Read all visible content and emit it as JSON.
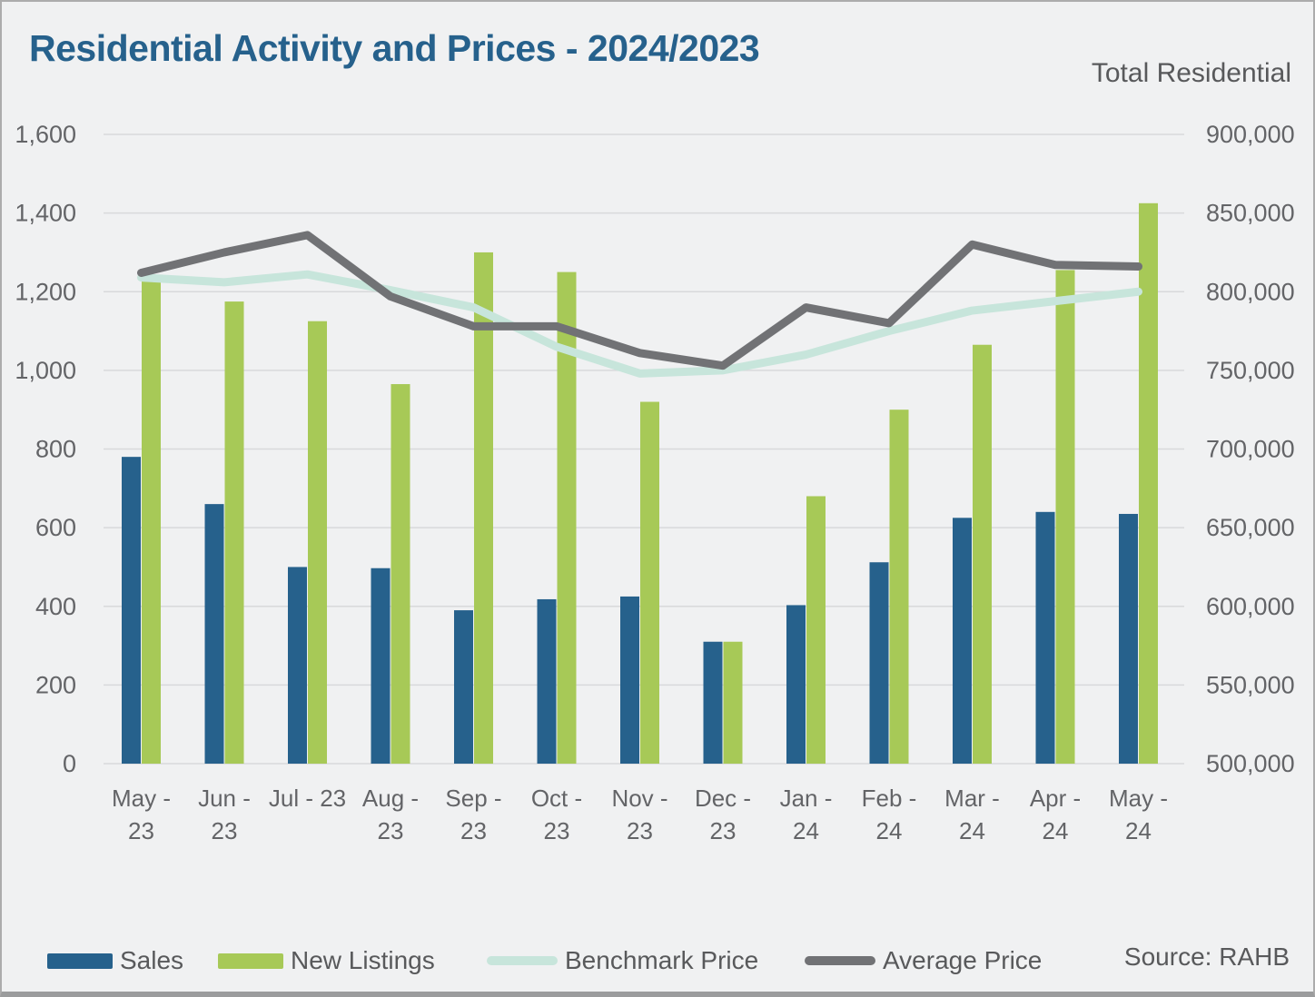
{
  "header": {
    "title": "Residential Activity and Prices - 2024/2023",
    "right_axis_title": "Total Residential"
  },
  "source": "Source: RAHB",
  "colors": {
    "sales_blue": "#26618C",
    "listings_green": "#A7C957",
    "benchmark_teal": "#C7E5DB",
    "average_gray": "#717275",
    "grid": "#D8D9DB",
    "axis_text": "#636467",
    "background": "#F0F1F2",
    "title_blue": "#26618C"
  },
  "legend": [
    {
      "label": "Sales",
      "kind": "bar",
      "color": "#26618C"
    },
    {
      "label": "New Listings",
      "kind": "bar",
      "color": "#A7C957"
    },
    {
      "label": "Benchmark Price",
      "kind": "line",
      "color": "#C7E5DB"
    },
    {
      "label": "Average Price",
      "kind": "line",
      "color": "#717275"
    }
  ],
  "chart_data": {
    "type": "bar",
    "subtype": "combo-bars-with-lines-dual-axis",
    "title": "Residential Activity and Prices - 2024/2023",
    "categories": [
      "May - 23",
      "Jun - 23",
      "Jul - 23",
      "Aug - 23",
      "Sep - 23",
      "Oct - 23",
      "Nov - 23",
      "Dec - 23",
      "Jan - 24",
      "Feb - 24",
      "Mar - 24",
      "Apr - 24",
      "May - 24"
    ],
    "category_label_lines": [
      [
        "May -",
        "23"
      ],
      [
        "Jun -",
        "23"
      ],
      [
        "Jul - 23"
      ],
      [
        "Aug -",
        "23"
      ],
      [
        "Sep -",
        "23"
      ],
      [
        "Oct -",
        "23"
      ],
      [
        "Nov -",
        "23"
      ],
      [
        "Dec -",
        "23"
      ],
      [
        "Jan -",
        "24"
      ],
      [
        "Feb -",
        "24"
      ],
      [
        "Mar -",
        "24"
      ],
      [
        "Apr -",
        "24"
      ],
      [
        "May -",
        "24"
      ]
    ],
    "series": [
      {
        "name": "Sales",
        "kind": "bar",
        "axis": "left",
        "color": "#26618C",
        "values": [
          780,
          660,
          500,
          497,
          390,
          418,
          425,
          310,
          403,
          512,
          625,
          640,
          635
        ]
      },
      {
        "name": "New Listings",
        "kind": "bar",
        "axis": "left",
        "color": "#A7C957",
        "values": [
          1240,
          1175,
          1125,
          965,
          1300,
          1250,
          920,
          310,
          680,
          900,
          1065,
          1255,
          1425
        ]
      },
      {
        "name": "Benchmark Price",
        "kind": "line",
        "axis": "right",
        "color": "#C7E5DB",
        "values": [
          809000,
          806000,
          811000,
          801000,
          790000,
          765000,
          748000,
          750000,
          760000,
          775000,
          788000,
          794000,
          800000
        ]
      },
      {
        "name": "Average Price",
        "kind": "line",
        "axis": "right",
        "color": "#717275",
        "values": [
          812000,
          825000,
          836000,
          797000,
          778000,
          778000,
          761000,
          753000,
          790000,
          780000,
          830000,
          817000,
          816000
        ]
      }
    ],
    "left_axis": {
      "min": 0,
      "max": 1600,
      "step": 200,
      "tick_labels_top_to_bottom": [
        "1,600",
        "1,400",
        "1,200",
        "1,000",
        "800",
        "600",
        "400",
        "200",
        "0"
      ]
    },
    "right_axis": {
      "min": 500000,
      "max": 900000,
      "step": 50000,
      "title": "Total Residential",
      "tick_labels_top_to_bottom": [
        "900,000",
        "850,000",
        "800,000",
        "750,000",
        "700,000",
        "650,000",
        "600,000",
        "550,000",
        "500,000"
      ]
    },
    "grid": true,
    "legend_position": "bottom"
  }
}
